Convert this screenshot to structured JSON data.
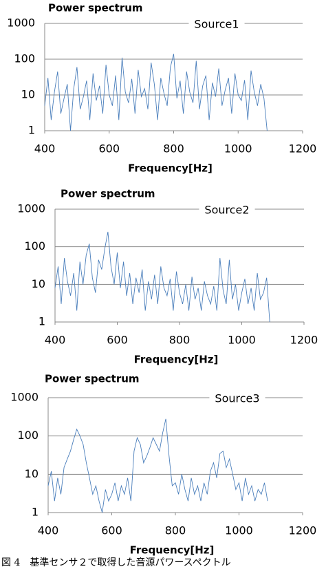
{
  "chart_data": [
    {
      "type": "line",
      "title": "Power spectrum",
      "x_label": "Frequency[Hz]",
      "yscale": "log",
      "grid": true,
      "xlim": [
        400,
        1200
      ],
      "xticks": [
        400,
        600,
        800,
        1000,
        1200
      ],
      "ylim": [
        1,
        1000
      ],
      "yticks": [
        1,
        10,
        100,
        1000
      ],
      "x": [
        400,
        410,
        420,
        430,
        440,
        450,
        460,
        470,
        480,
        490,
        500,
        510,
        520,
        530,
        540,
        550,
        560,
        570,
        580,
        590,
        600,
        610,
        620,
        630,
        640,
        650,
        660,
        670,
        680,
        690,
        700,
        710,
        720,
        730,
        740,
        750,
        760,
        770,
        780,
        790,
        800,
        810,
        820,
        830,
        840,
        850,
        860,
        870,
        880,
        890,
        900,
        910,
        920,
        930,
        940,
        950,
        960,
        970,
        980,
        990,
        1000,
        1010,
        1020,
        1030,
        1040,
        1050,
        1060,
        1070,
        1080,
        1090
      ],
      "series": [
        {
          "name": "Source1",
          "color": "#4a7ebb",
          "values": [
            5,
            30,
            2,
            12,
            45,
            3,
            8,
            20,
            1,
            15,
            60,
            4,
            9,
            25,
            2,
            40,
            7,
            18,
            3,
            70,
            10,
            5,
            35,
            2,
            110,
            12,
            6,
            28,
            3,
            50,
            9,
            15,
            4,
            80,
            20,
            2,
            30,
            11,
            5,
            60,
            140,
            8,
            25,
            3,
            45,
            12,
            6,
            90,
            4,
            18,
            35,
            2,
            22,
            9,
            55,
            5,
            14,
            30,
            3,
            40,
            10,
            7,
            26,
            2,
            48,
            12,
            5,
            20,
            8,
            1
          ]
        }
      ]
    },
    {
      "type": "line",
      "title": "Power spectrum",
      "x_label": "Frequency[Hz]",
      "yscale": "log",
      "grid": true,
      "xlim": [
        400,
        1200
      ],
      "xticks": [
        400,
        600,
        800,
        1000,
        1200
      ],
      "ylim": [
        1,
        1000
      ],
      "yticks": [
        1,
        10,
        100,
        1000
      ],
      "x": [
        400,
        410,
        420,
        430,
        440,
        450,
        460,
        470,
        480,
        490,
        500,
        510,
        520,
        530,
        540,
        550,
        560,
        570,
        580,
        590,
        600,
        610,
        620,
        630,
        640,
        650,
        660,
        670,
        680,
        690,
        700,
        710,
        720,
        730,
        740,
        750,
        760,
        770,
        780,
        790,
        800,
        810,
        820,
        830,
        840,
        850,
        860,
        870,
        880,
        890,
        900,
        910,
        920,
        930,
        940,
        950,
        960,
        970,
        980,
        990,
        1000,
        1010,
        1020,
        1030,
        1040,
        1050,
        1060,
        1070,
        1080,
        1090
      ],
      "series": [
        {
          "name": "Source2",
          "color": "#4a7ebb",
          "values": [
            8,
            30,
            3,
            50,
            12,
            5,
            20,
            2,
            40,
            10,
            60,
            120,
            15,
            6,
            45,
            25,
            90,
            250,
            30,
            10,
            70,
            8,
            40,
            5,
            20,
            3,
            15,
            6,
            25,
            2,
            12,
            4,
            18,
            3,
            30,
            8,
            5,
            14,
            2,
            22,
            6,
            3,
            10,
            2,
            16,
            4,
            8,
            2,
            12,
            5,
            3,
            9,
            2,
            50,
            7,
            3,
            45,
            4,
            10,
            2,
            6,
            14,
            3,
            8,
            2,
            20,
            4,
            6,
            15,
            1
          ]
        }
      ]
    },
    {
      "type": "line",
      "title": "Power spectrum",
      "x_label": "Frequency[Hz]",
      "yscale": "log",
      "grid": true,
      "xlim": [
        400,
        1200
      ],
      "xticks": [
        400,
        600,
        800,
        1000,
        1200
      ],
      "ylim": [
        1,
        1000
      ],
      "yticks": [
        1,
        10,
        100,
        1000
      ],
      "x": [
        400,
        410,
        420,
        430,
        440,
        450,
        460,
        470,
        480,
        490,
        500,
        510,
        520,
        530,
        540,
        550,
        560,
        570,
        580,
        590,
        600,
        610,
        620,
        630,
        640,
        650,
        660,
        670,
        680,
        690,
        700,
        710,
        720,
        730,
        740,
        750,
        760,
        770,
        780,
        790,
        800,
        810,
        820,
        830,
        840,
        850,
        860,
        870,
        880,
        890,
        900,
        910,
        920,
        930,
        940,
        950,
        960,
        970,
        980,
        990,
        1000,
        1010,
        1020,
        1030,
        1040,
        1050,
        1060,
        1070,
        1080,
        1090
      ],
      "series": [
        {
          "name": "Source3",
          "color": "#4a7ebb",
          "values": [
            5,
            12,
            2,
            8,
            3,
            15,
            25,
            40,
            80,
            150,
            100,
            60,
            20,
            8,
            3,
            5,
            2,
            1,
            4,
            2,
            3,
            6,
            2,
            5,
            3,
            8,
            2,
            40,
            90,
            60,
            20,
            30,
            50,
            90,
            60,
            40,
            120,
            280,
            30,
            5,
            6,
            3,
            10,
            4,
            2,
            8,
            3,
            5,
            2,
            6,
            3,
            12,
            20,
            8,
            35,
            40,
            15,
            25,
            10,
            4,
            6,
            2,
            8,
            3,
            5,
            2,
            4,
            3,
            6,
            2
          ]
        }
      ]
    }
  ],
  "caption": "図 4　基準センサ２で取得した音源パワースペクトル"
}
